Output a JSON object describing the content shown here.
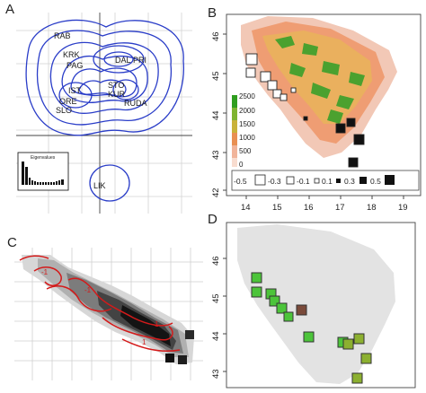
{
  "panels": {
    "A": {
      "letter": "A",
      "site_labels": [
        "RAB",
        "KRK",
        "PAG",
        "DAL",
        "PRI",
        "IST",
        "STO",
        "KUR",
        "RUDA",
        "ORE",
        "SLO",
        "LIK"
      ],
      "inset_title": "Eigenvalues"
    },
    "B": {
      "letter": "B",
      "y_ticks": [
        "46",
        "45",
        "44",
        "43",
        "42"
      ],
      "x_ticks": [
        "14",
        "15",
        "16",
        "17",
        "18",
        "19"
      ],
      "elevation_legend": [
        "2500",
        "2000",
        "1500",
        "1000",
        "500",
        "0"
      ],
      "size_legend": [
        "-0.5",
        "-0.3",
        "-0.1",
        "0.1",
        "0.3",
        "0.5"
      ],
      "colors": {
        "high": "#2f9e1f",
        "mid": "#c9b23a",
        "low": "#ee8a5e",
        "lowest": "#f7d3c3"
      }
    },
    "C": {
      "letter": "C",
      "contour_labels": [
        "-1",
        "-1",
        "1",
        "1"
      ]
    },
    "D": {
      "letter": "D",
      "y_ticks": [
        "46",
        "45",
        "44",
        "43"
      ],
      "colors": {
        "land": "#e3e3e3",
        "marker_fill": "#4cc43a"
      }
    }
  }
}
